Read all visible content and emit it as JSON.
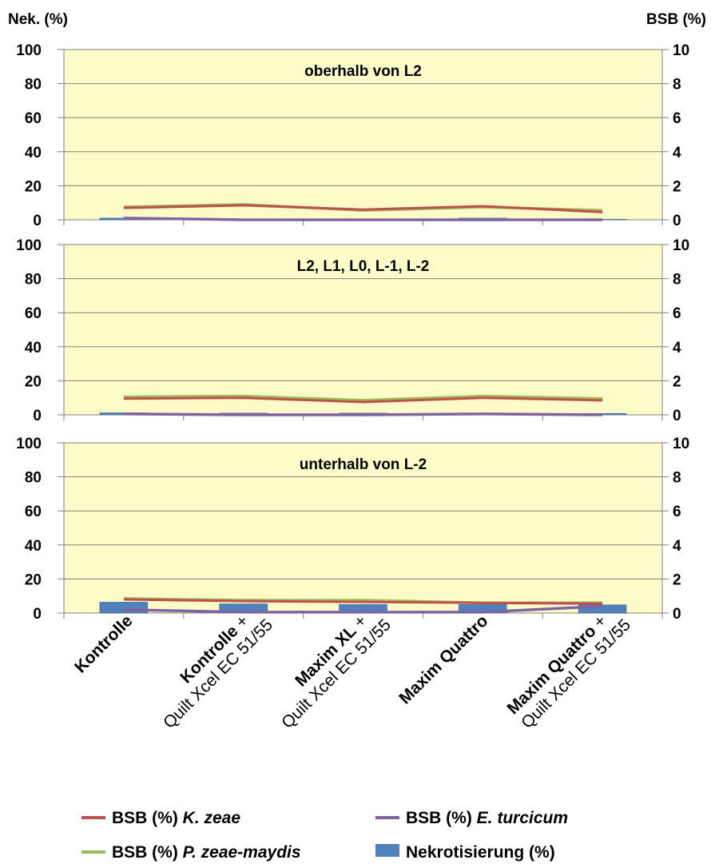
{
  "chart_data": {
    "type": "bar",
    "left_axis_title": "Nek. (%)",
    "right_axis_title": "BSB (%)",
    "left_ticks": [
      "100",
      "80",
      "60",
      "40",
      "20",
      "0"
    ],
    "right_ticks": [
      "10",
      "8",
      "6",
      "4",
      "2",
      "0"
    ],
    "left_ylim": [
      0,
      100
    ],
    "right_ylim": [
      0,
      10
    ],
    "categories": [
      {
        "bold": "Kontrolle",
        "sep": "",
        "normal": ""
      },
      {
        "bold": "Kontrolle",
        "sep": " +",
        "normal": "Quilt Xcel EC 51/55"
      },
      {
        "bold": "Maxim XL",
        "sep": " +",
        "normal": "Quilt Xcel EC 51/55"
      },
      {
        "bold": "Maxim Quattro",
        "sep": "",
        "normal": ""
      },
      {
        "bold": "Maxim Quattro",
        "sep": " +",
        "normal": "Quilt Xcel EC 51/55"
      }
    ],
    "legend": {
      "k_zeae": {
        "prefix": "BSB (%) ",
        "italic": "K. zeae"
      },
      "e_turcicum": {
        "prefix": "BSB (%) ",
        "italic": "E. turcicum"
      },
      "p_zeae": {
        "prefix": "BSB (%) ",
        "italic": "P. zeae-maydis"
      },
      "nekrotisierung": {
        "prefix": "Nekrotisierung (%)",
        "italic": ""
      }
    },
    "colors": {
      "k_zeae": "#c0504d",
      "e_turcicum": "#8064a2",
      "p_zeae": "#9bbb59",
      "nekrotisierung": "#4f81bd",
      "plot_bg": "#fdfbc8"
    },
    "panels": [
      {
        "title": "oberhalb von L2",
        "nekrotisierung": [
          1.0,
          0.3,
          0.2,
          1.0,
          0.3
        ],
        "k_zeae": [
          0.7,
          0.85,
          0.6,
          0.8,
          0.45
        ],
        "p_zeae": [
          0.75,
          0.9,
          0.55,
          0.75,
          0.55
        ],
        "e_turcicum": [
          0.1,
          0.0,
          0.0,
          0.0,
          0.0
        ]
      },
      {
        "title": "L2, L1, L0, L-1, L-2",
        "nekrotisierung": [
          1.2,
          1.0,
          1.0,
          1.0,
          0.8
        ],
        "k_zeae": [
          0.95,
          1.0,
          0.75,
          1.0,
          0.85
        ],
        "p_zeae": [
          1.05,
          1.1,
          0.85,
          1.1,
          0.95
        ],
        "e_turcicum": [
          0.05,
          0.0,
          0.0,
          0.05,
          0.0
        ]
      },
      {
        "title": "unterhalb von L-2",
        "nekrotisierung": [
          6.4,
          5.4,
          5.0,
          5.0,
          4.8
        ],
        "k_zeae": [
          0.8,
          0.7,
          0.65,
          0.6,
          0.55
        ],
        "p_zeae": [
          0.85,
          0.75,
          0.75,
          0.6,
          0.6
        ],
        "e_turcicum": [
          0.2,
          0.05,
          0.05,
          0.05,
          0.4
        ]
      }
    ]
  }
}
